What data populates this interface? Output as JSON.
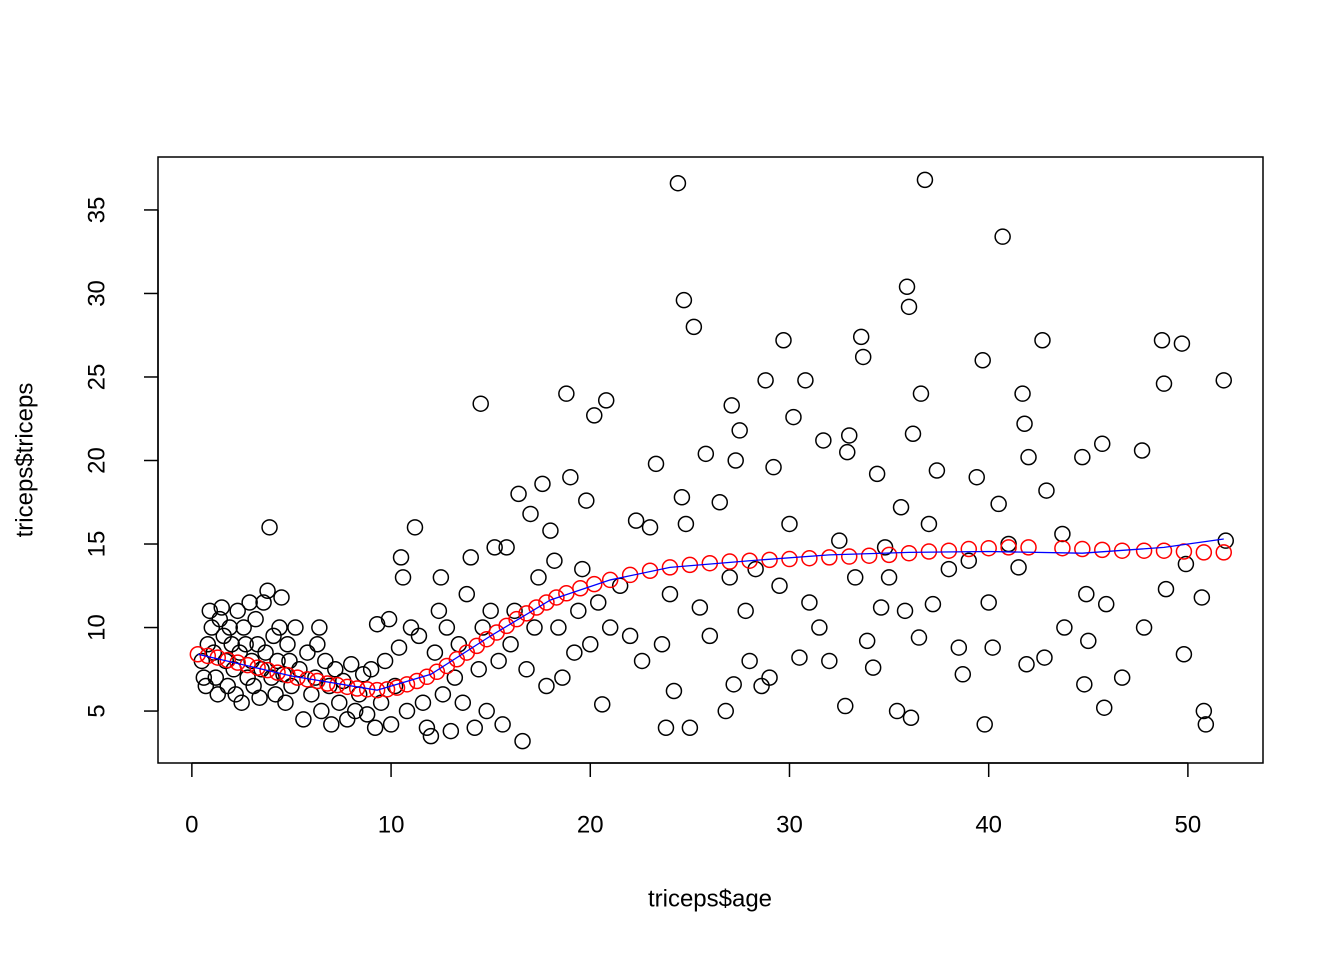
{
  "chart_data": {
    "type": "scatter",
    "x_label": "triceps$age",
    "y_label": "triceps$triceps",
    "xlim": [
      -1.7,
      53.77
    ],
    "ylim": [
      1.89,
      38.17
    ],
    "xticks": [
      0,
      10,
      20,
      30,
      40,
      50
    ],
    "yticks": [
      5,
      10,
      15,
      20,
      25,
      30,
      35
    ],
    "series": [
      {
        "color": "#000000",
        "style": "points",
        "x": [
          0.5,
          0.6,
          0.7,
          0.8,
          0.9,
          1,
          1.1,
          1.2,
          1.3,
          1.4,
          1.5,
          1.6,
          1.7,
          1.8,
          1.9,
          2,
          2.1,
          2.2,
          2.3,
          2.4,
          2.5,
          2.6,
          2.7,
          2.8,
          2.9,
          3,
          3.1,
          3.2,
          3.3,
          3.4,
          3.5,
          3.6,
          3.7,
          3.8,
          3.9,
          4,
          4.1,
          4.2,
          4.3,
          4.4,
          4.5,
          4.6,
          4.7,
          4.8,
          4.9,
          5,
          5.2,
          5.4,
          5.6,
          5.8,
          6,
          6.2,
          6.3,
          6.4,
          6.5,
          6.7,
          6.9,
          7,
          7.2,
          7.4,
          7.6,
          7.8,
          8,
          8.2,
          8.4,
          8.6,
          8.8,
          9,
          9.2,
          9.3,
          9.5,
          9.7,
          9.9,
          10,
          10.2,
          10.4,
          10.5,
          10.6,
          10.8,
          11,
          11.2,
          11.4,
          11.6,
          11.8,
          12,
          12.2,
          12.4,
          12.5,
          12.6,
          12.8,
          13,
          13.2,
          13.4,
          13.6,
          13.8,
          14,
          14.2,
          14.4,
          14.5,
          14.6,
          14.8,
          15,
          15.2,
          15.4,
          15.6,
          15.8,
          16,
          16.2,
          16.4,
          16.6,
          16.8,
          17,
          17.2,
          17.4,
          17.6,
          17.8,
          18,
          18.2,
          18.4,
          18.6,
          18.8,
          19,
          19.2,
          19.4,
          19.6,
          19.8,
          20,
          20.2,
          20.4,
          20.6,
          20.8,
          21,
          21.5,
          22,
          22.3,
          22.6,
          23,
          23.3,
          23.6,
          23.8,
          24,
          24.2,
          24.4,
          24.6,
          24.7,
          24.8,
          25,
          25.2,
          25.5,
          25.8,
          26,
          26.5,
          26.8,
          27,
          27.1,
          27.2,
          27.3,
          27.5,
          27.8,
          28,
          28.3,
          28.6,
          28.8,
          29,
          29.2,
          29.5,
          29.7,
          30,
          30.2,
          30.5,
          30.8,
          31,
          31.5,
          31.7,
          32,
          32.5,
          32.8,
          32.9,
          33,
          33.3,
          33.6,
          33.7,
          33.9,
          34.2,
          34.4,
          34.6,
          34.8,
          35,
          35.4,
          35.6,
          35.8,
          35.9,
          36,
          36.1,
          36.2,
          36.5,
          36.6,
          36.8,
          37,
          37.2,
          37.4,
          38,
          38.5,
          38.7,
          39,
          39.4,
          39.7,
          39.8,
          40,
          40.2,
          40.5,
          40.7,
          41,
          41.5,
          41.7,
          41.8,
          41.9,
          42,
          42.7,
          42.8,
          42.9,
          43.7,
          43.8,
          44.7,
          44.8,
          44.9,
          45,
          45.7,
          45.8,
          45.9,
          46.7,
          47.7,
          47.8,
          48.7,
          48.8,
          48.9,
          49.7,
          49.8,
          49.9,
          50.7,
          50.8,
          50.9,
          51.8,
          51.9
        ],
        "y": [
          8,
          7,
          6.5,
          9,
          11,
          10,
          8.5,
          7,
          6,
          10.5,
          11.2,
          9.5,
          8,
          6.5,
          10,
          9,
          7.5,
          6,
          11,
          8.5,
          5.5,
          10,
          9,
          7,
          11.5,
          8,
          6.5,
          10.5,
          9,
          5.8,
          7.5,
          11.5,
          8.5,
          12.2,
          16,
          7,
          9.5,
          6,
          8,
          10,
          11.8,
          7.2,
          5.5,
          9,
          8,
          6.5,
          10,
          7.5,
          4.5,
          8.5,
          6,
          7,
          9,
          10,
          5,
          8,
          6.5,
          4.2,
          7.5,
          5.5,
          6.8,
          4.5,
          7.8,
          5,
          6,
          7.2,
          4.8,
          7.5,
          4,
          10.2,
          5.5,
          8,
          10.5,
          4.2,
          6.5,
          8.8,
          14.2,
          13,
          5,
          10,
          16,
          9.5,
          5.5,
          4,
          3.5,
          8.5,
          11,
          13,
          6,
          10,
          3.8,
          7,
          9,
          5.5,
          12,
          14.2,
          4,
          7.5,
          23.4,
          10,
          5,
          11,
          14.8,
          8,
          4.2,
          14.8,
          9,
          11,
          18,
          3.2,
          7.5,
          16.8,
          10,
          13,
          18.6,
          6.5,
          15.8,
          14,
          10,
          7,
          24,
          19,
          8.5,
          11,
          13.5,
          17.6,
          9,
          22.7,
          11.5,
          5.4,
          23.6,
          10,
          12.5,
          9.5,
          16.4,
          8,
          16,
          19.8,
          9,
          4,
          12,
          6.2,
          36.6,
          17.8,
          29.6,
          16.2,
          4,
          28,
          11.2,
          20.4,
          9.5,
          17.5,
          5,
          13,
          23.3,
          6.6,
          20,
          21.8,
          11,
          8,
          13.5,
          6.5,
          24.8,
          7,
          19.6,
          12.5,
          27.2,
          16.2,
          22.6,
          8.2,
          24.8,
          11.5,
          10,
          21.2,
          8,
          15.2,
          5.3,
          20.5,
          21.5,
          13,
          27.4,
          26.2,
          9.2,
          7.6,
          19.2,
          11.2,
          14.8,
          13,
          5,
          17.2,
          11,
          30.4,
          29.2,
          4.6,
          21.6,
          9.4,
          24,
          36.8,
          16.2,
          11.4,
          19.4,
          13.5,
          8.8,
          7.2,
          14,
          19,
          26,
          4.2,
          11.5,
          8.8,
          17.4,
          33.4,
          15,
          13.6,
          24,
          22.2,
          7.8,
          20.2,
          27.2,
          8.2,
          18.2,
          15.6,
          10,
          20.2,
          6.6,
          12,
          9.2,
          21,
          5.2,
          11.4,
          7,
          20.6,
          10,
          27.2,
          24.6,
          12.3,
          27,
          8.4,
          13.8,
          11.8,
          5,
          4.2,
          24.8,
          15.2
        ]
      },
      {
        "color": "#ff0000",
        "style": "points",
        "x": [
          0.3,
          0.8,
          1.3,
          1.8,
          2.3,
          2.8,
          3.3,
          3.8,
          4.3,
          4.8,
          5.3,
          5.8,
          6.3,
          6.8,
          7.3,
          7.8,
          8.3,
          8.8,
          9.3,
          9.8,
          10.3,
          10.8,
          11.3,
          11.8,
          12.3,
          12.8,
          13.3,
          13.8,
          14.3,
          14.8,
          15.3,
          15.8,
          16.3,
          16.8,
          17.3,
          17.8,
          18.3,
          18.8,
          19.5,
          20.2,
          21,
          22,
          23,
          24,
          25,
          26,
          27,
          28,
          29,
          30,
          31,
          32,
          33,
          34,
          35,
          36,
          37,
          38,
          39,
          40,
          41,
          42,
          43.7,
          44.7,
          45.7,
          46.7,
          47.8,
          48.8,
          49.8,
          50.8,
          51.8
        ],
        "y": [
          8.4,
          8.3,
          8.2,
          8.05,
          7.9,
          7.75,
          7.6,
          7.45,
          7.3,
          7.15,
          7.0,
          6.9,
          6.8,
          6.65,
          6.55,
          6.45,
          6.35,
          6.3,
          6.25,
          6.3,
          6.4,
          6.6,
          6.8,
          7.05,
          7.35,
          7.7,
          8.1,
          8.5,
          8.9,
          9.3,
          9.7,
          10.1,
          10.5,
          10.85,
          11.2,
          11.5,
          11.8,
          12.05,
          12.35,
          12.6,
          12.85,
          13.15,
          13.4,
          13.6,
          13.75,
          13.85,
          13.95,
          14.0,
          14.05,
          14.1,
          14.15,
          14.2,
          14.25,
          14.3,
          14.35,
          14.45,
          14.55,
          14.6,
          14.7,
          14.75,
          14.8,
          14.8,
          14.75,
          14.7,
          14.65,
          14.6,
          14.6,
          14.6,
          14.55,
          14.5,
          14.5
        ]
      },
      {
        "color": "#0000ff",
        "style": "line",
        "x": [
          0.3,
          5,
          9.3,
          12,
          15,
          18,
          21,
          24,
          28,
          32,
          36,
          40,
          44.7,
          48.8,
          51.8
        ],
        "y": [
          8.4,
          7.1,
          6.25,
          7.2,
          9.5,
          11.65,
          12.85,
          13.6,
          14.0,
          14.35,
          14.5,
          14.55,
          14.45,
          14.8,
          15.3
        ]
      }
    ]
  }
}
